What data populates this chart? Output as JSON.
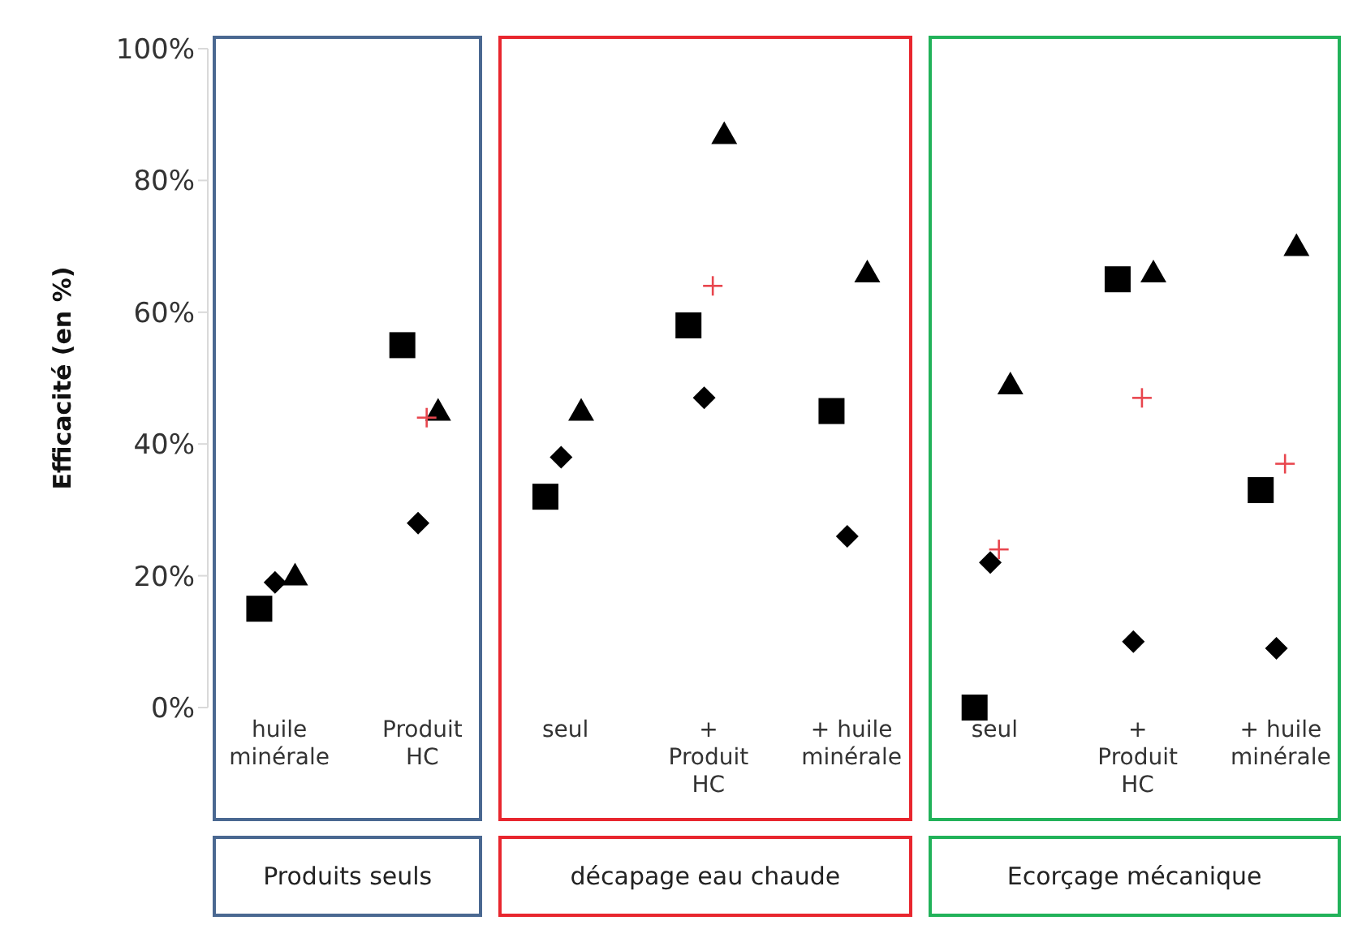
{
  "chart_data": {
    "type": "scatter",
    "ylabel": "Efficacité (en %)",
    "categories": [
      "huile minérale",
      "Produit HC",
      "seul",
      "+ Produit HC",
      "+ huile minérale",
      "seul",
      "+ Produit HC",
      "+ huile minérale"
    ],
    "ylim": [
      0,
      100
    ],
    "yticks": [
      {
        "value": 0,
        "label": "0%"
      },
      {
        "value": 20,
        "label": "20%"
      },
      {
        "value": 40,
        "label": "40%"
      },
      {
        "value": 60,
        "label": "60%"
      },
      {
        "value": 80,
        "label": "80%"
      },
      {
        "value": 100,
        "label": "100%"
      }
    ],
    "series": [
      {
        "color": "#000000",
        "marker": "square",
        "values": [
          15,
          55,
          32,
          58,
          45,
          0,
          65,
          33
        ]
      },
      {
        "color": "#000000",
        "marker": "diamond",
        "values": [
          19,
          28,
          38,
          47,
          26,
          22,
          10,
          9
        ]
      },
      {
        "color": "#000000",
        "marker": "triangle",
        "values": [
          20,
          45,
          45,
          87,
          66,
          49,
          66,
          70
        ]
      },
      {
        "color": "#e8464e",
        "marker": "cross",
        "values": [
          null,
          44,
          null,
          64,
          null,
          24,
          47,
          37
        ]
      }
    ],
    "annotations": [
      "Produits seuls",
      "décapage eau chaude",
      "Ecorçage mécanique"
    ]
  }
}
